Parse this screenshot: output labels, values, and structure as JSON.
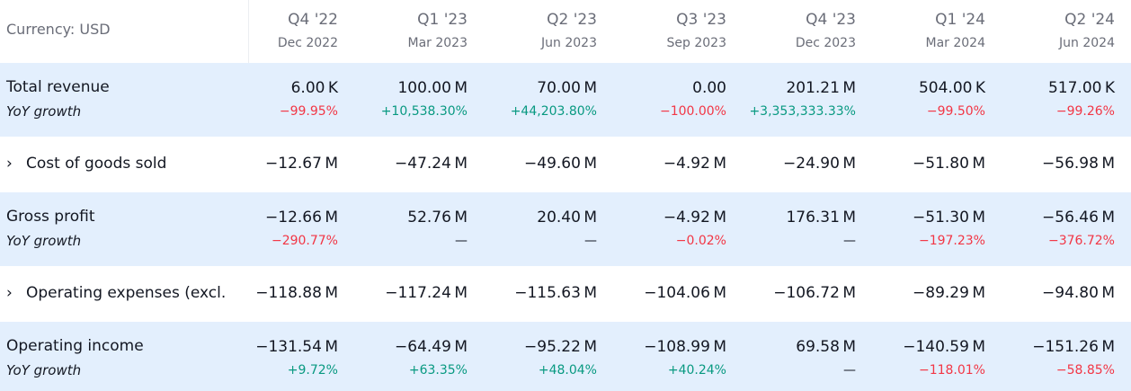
{
  "currency_label": "Currency: USD",
  "colors": {
    "row_shade": "#e3effd",
    "negative": "#f23645",
    "positive": "#089981",
    "muted": "#6a6d78",
    "text": "#131722"
  },
  "columns": [
    {
      "quarter": "Q4 '22",
      "date": "Dec 2022"
    },
    {
      "quarter": "Q1 '23",
      "date": "Mar 2023"
    },
    {
      "quarter": "Q2 '23",
      "date": "Jun 2023"
    },
    {
      "quarter": "Q3 '23",
      "date": "Sep 2023"
    },
    {
      "quarter": "Q4 '23",
      "date": "Dec 2023"
    },
    {
      "quarter": "Q1 '24",
      "date": "Mar 2024"
    },
    {
      "quarter": "Q2 '24",
      "date": "Jun 2024"
    }
  ],
  "rows": [
    {
      "label": "Total revenue",
      "sub_label": "YoY growth",
      "shaded": true,
      "values": [
        "6.00 K",
        "100.00 M",
        "70.00 M",
        "0.00",
        "201.21 M",
        "504.00 K",
        "517.00 K"
      ],
      "growth": [
        "−99.95%",
        "+10,538.30%",
        "+44,203.80%",
        "−100.00%",
        "+3,353,333.33%",
        "−99.50%",
        "−99.26%"
      ]
    },
    {
      "label": "Cost of goods sold",
      "expandable": true,
      "shaded": false,
      "values": [
        "−12.67 M",
        "−47.24 M",
        "−49.60 M",
        "−4.92 M",
        "−24.90 M",
        "−51.80 M",
        "−56.98 M"
      ]
    },
    {
      "label": "Gross profit",
      "sub_label": "YoY growth",
      "shaded": true,
      "values": [
        "−12.66 M",
        "52.76 M",
        "20.40 M",
        "−4.92 M",
        "176.31 M",
        "−51.30 M",
        "−56.46 M"
      ],
      "growth": [
        "−290.77%",
        "—",
        "—",
        "−0.02%",
        "—",
        "−197.23%",
        "−376.72%"
      ]
    },
    {
      "label": "Operating expenses (excl.",
      "expandable": true,
      "shaded": false,
      "values": [
        "−118.88 M",
        "−117.24 M",
        "−115.63 M",
        "−104.06 M",
        "−106.72 M",
        "−89.29 M",
        "−94.80 M"
      ]
    },
    {
      "label": "Operating income",
      "sub_label": "YoY growth",
      "shaded": true,
      "values": [
        "−131.54 M",
        "−64.49 M",
        "−95.22 M",
        "−108.99 M",
        "69.58 M",
        "−140.59 M",
        "−151.26 M"
      ],
      "growth": [
        "+9.72%",
        "+63.35%",
        "+48.04%",
        "+40.24%",
        "—",
        "−118.01%",
        "−58.85%"
      ]
    }
  ]
}
